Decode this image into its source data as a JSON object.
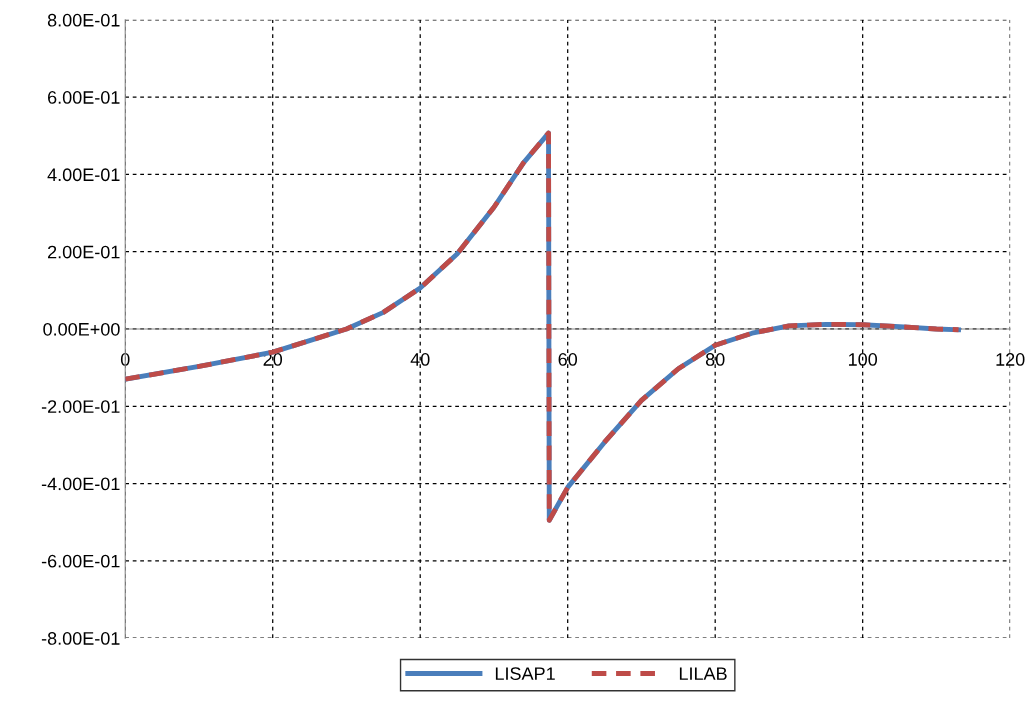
{
  "chart_data": {
    "type": "line",
    "x": [
      0,
      10,
      20,
      25,
      30,
      35,
      40,
      45,
      50,
      54,
      57.4,
      57.5,
      60,
      65,
      70,
      75,
      80,
      85,
      90,
      95,
      100,
      105,
      110,
      113
    ],
    "series": [
      {
        "name": "LISAP1",
        "color": "#4a7ebb",
        "line_style": "solid",
        "values": [
          -0.13,
          -0.097,
          -0.06,
          -0.03,
          0,
          0.043,
          0.106,
          0.194,
          0.315,
          0.43,
          0.507,
          -0.495,
          -0.41,
          -0.293,
          -0.185,
          -0.103,
          -0.042,
          -0.011,
          0.008,
          0.012,
          0.011,
          0.006,
          0,
          -0.002
        ]
      },
      {
        "name": "LILAB",
        "color": "#be4b48",
        "line_style": "dashed",
        "values": [
          -0.13,
          -0.097,
          -0.06,
          -0.03,
          0,
          0.043,
          0.106,
          0.194,
          0.315,
          0.43,
          0.507,
          -0.495,
          -0.41,
          -0.293,
          -0.185,
          -0.103,
          -0.042,
          -0.011,
          0.008,
          0.012,
          0.011,
          0.006,
          0,
          -0.002
        ]
      }
    ],
    "xlim": [
      0,
      120
    ],
    "xticks": [
      0,
      20,
      40,
      60,
      80,
      100,
      120
    ],
    "ylim": [
      -0.8,
      0.8
    ],
    "yticks": [
      {
        "value": -0.8,
        "label": "-8.00E-01"
      },
      {
        "value": -0.6,
        "label": "-6.00E-01"
      },
      {
        "value": -0.4,
        "label": "-4.00E-01"
      },
      {
        "value": -0.2,
        "label": "-2.00E-01"
      },
      {
        "value": 0,
        "label": "0.00E+00"
      },
      {
        "value": 0.2,
        "label": "2.00E-01"
      },
      {
        "value": 0.4,
        "label": "4.00E-01"
      },
      {
        "value": 0.6,
        "label": "6.00E-01"
      },
      {
        "value": 0.8,
        "label": "8.00E-01"
      }
    ],
    "grid": true,
    "legend": "bottom",
    "marker": "none"
  }
}
